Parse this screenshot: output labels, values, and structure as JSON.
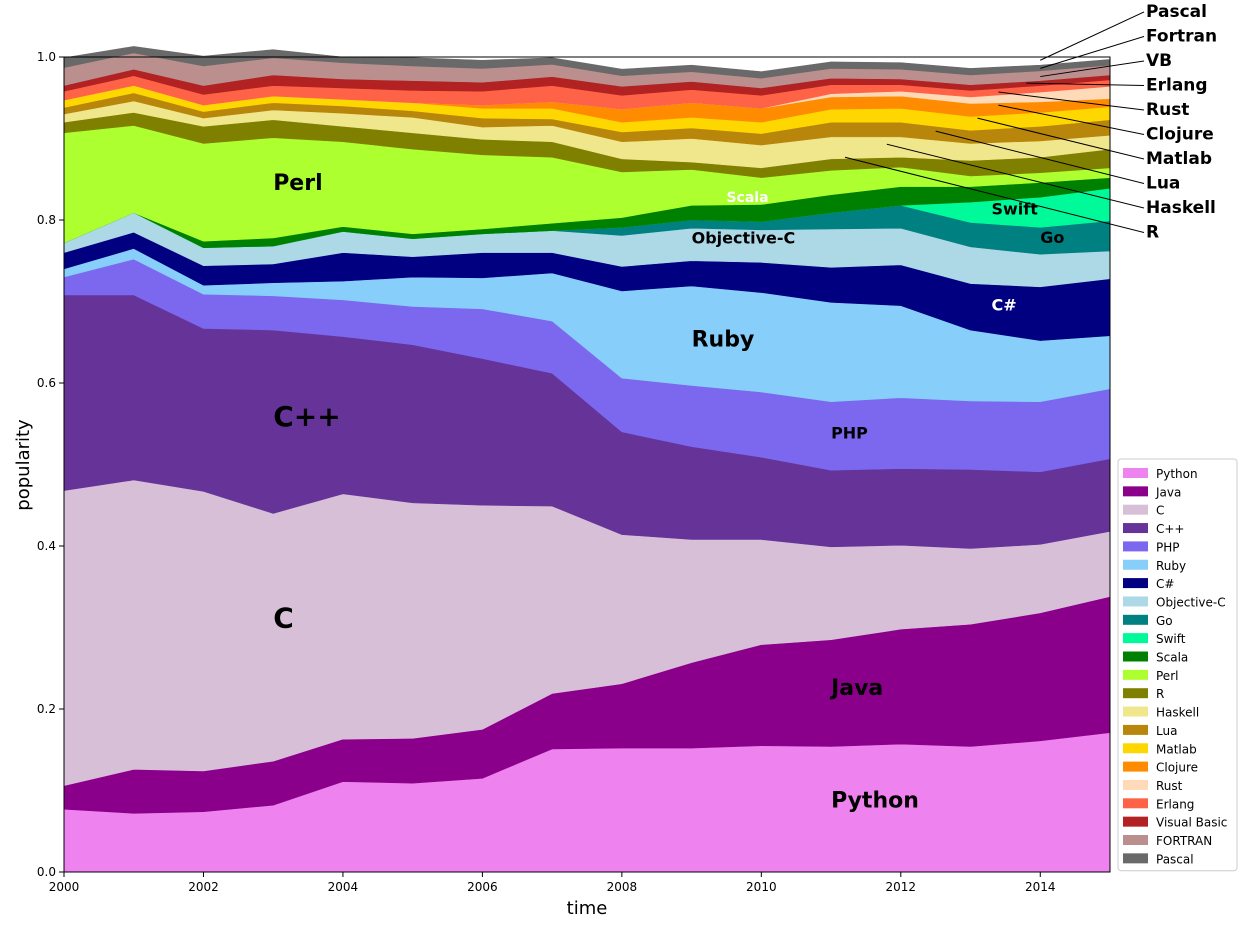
{
  "chart_data": {
    "type": "area",
    "stacked": true,
    "title": "",
    "xlabel": "time",
    "ylabel": "popularity",
    "xlim": [
      2000,
      2015
    ],
    "ylim": [
      0,
      1.0
    ],
    "xticks": [
      "2000",
      "2002",
      "2004",
      "2006",
      "2008",
      "2010",
      "2012",
      "2014"
    ],
    "yticks": [
      "0.0",
      "0.2",
      "0.4",
      "0.6",
      "0.8",
      "1.0"
    ],
    "legend_position": "bottom-right",
    "grid": false,
    "x": [
      2000,
      2001,
      2002,
      2003,
      2004,
      2005,
      2006,
      2007,
      2008,
      2009,
      2010,
      2011,
      2012,
      2013,
      2014,
      2015
    ],
    "series": [
      {
        "name": "Python",
        "color": "#ee82ee",
        "values": [
          0.077,
          0.072,
          0.074,
          0.082,
          0.111,
          0.109,
          0.115,
          0.151,
          0.152,
          0.152,
          0.155,
          0.154,
          0.157,
          0.154,
          0.161,
          0.171
        ]
      },
      {
        "name": "Java",
        "color": "#8b008b",
        "values": [
          0.029,
          0.054,
          0.05,
          0.054,
          0.052,
          0.055,
          0.06,
          0.068,
          0.079,
          0.105,
          0.124,
          0.131,
          0.141,
          0.15,
          0.157,
          0.167
        ]
      },
      {
        "name": "C",
        "color": "#d8bfd8",
        "values": [
          0.362,
          0.355,
          0.343,
          0.304,
          0.301,
          0.289,
          0.275,
          0.23,
          0.183,
          0.151,
          0.129,
          0.114,
          0.103,
          0.093,
          0.084,
          0.08
        ]
      },
      {
        "name": "C++",
        "color": "#663399",
        "values": [
          0.24,
          0.227,
          0.2,
          0.225,
          0.193,
          0.194,
          0.18,
          0.163,
          0.126,
          0.114,
          0.101,
          0.094,
          0.094,
          0.097,
          0.089,
          0.089
        ]
      },
      {
        "name": "PHP",
        "color": "#7b68ee",
        "values": [
          0.022,
          0.044,
          0.042,
          0.042,
          0.045,
          0.047,
          0.061,
          0.064,
          0.066,
          0.075,
          0.08,
          0.084,
          0.087,
          0.084,
          0.086,
          0.086
        ]
      },
      {
        "name": "Ruby",
        "color": "#87cefa",
        "values": [
          0.01,
          0.013,
          0.011,
          0.016,
          0.023,
          0.036,
          0.038,
          0.059,
          0.107,
          0.122,
          0.122,
          0.122,
          0.113,
          0.087,
          0.075,
          0.065
        ]
      },
      {
        "name": "C#",
        "color": "#000080",
        "values": [
          0.02,
          0.02,
          0.024,
          0.023,
          0.035,
          0.025,
          0.031,
          0.025,
          0.03,
          0.031,
          0.037,
          0.043,
          0.05,
          0.057,
          0.066,
          0.07
        ]
      },
      {
        "name": "Objective-C",
        "color": "#add8e6",
        "values": [
          0.012,
          0.024,
          0.022,
          0.022,
          0.026,
          0.022,
          0.023,
          0.027,
          0.038,
          0.04,
          0.04,
          0.047,
          0.045,
          0.045,
          0.04,
          0.034
        ]
      },
      {
        "name": "Go",
        "color": "#008080",
        "values": [
          0.0,
          0.0,
          0.0,
          0.0,
          0.0,
          0.0,
          0.0,
          0.0,
          0.01,
          0.01,
          0.01,
          0.02,
          0.028,
          0.03,
          0.033,
          0.037
        ]
      },
      {
        "name": "Swift",
        "color": "#00fa9a",
        "values": [
          0.0,
          0.0,
          0.0,
          0.0,
          0.0,
          0.0,
          0.0,
          0.0,
          0.0,
          0.0,
          0.0,
          0.0,
          0.0,
          0.025,
          0.037,
          0.04
        ]
      },
      {
        "name": "Scala",
        "color": "#008000",
        "values": [
          0.0,
          0.0,
          0.008,
          0.01,
          0.006,
          0.006,
          0.006,
          0.009,
          0.012,
          0.018,
          0.021,
          0.022,
          0.023,
          0.019,
          0.018,
          0.013
        ]
      },
      {
        "name": "Perl",
        "color": "#adff2f",
        "values": [
          0.135,
          0.107,
          0.12,
          0.123,
          0.104,
          0.104,
          0.091,
          0.081,
          0.056,
          0.044,
          0.033,
          0.03,
          0.024,
          0.013,
          0.012,
          0.012
        ]
      },
      {
        "name": "R",
        "color": "#808000",
        "values": [
          0.013,
          0.016,
          0.021,
          0.022,
          0.019,
          0.02,
          0.019,
          0.019,
          0.016,
          0.009,
          0.012,
          0.014,
          0.012,
          0.019,
          0.019,
          0.023
        ]
      },
      {
        "name": "Haskell",
        "color": "#f0e68c",
        "values": [
          0.01,
          0.014,
          0.01,
          0.012,
          0.016,
          0.019,
          0.015,
          0.02,
          0.021,
          0.029,
          0.028,
          0.027,
          0.025,
          0.021,
          0.02,
          0.017
        ]
      },
      {
        "name": "Lua",
        "color": "#b8860b",
        "values": [
          0.008,
          0.01,
          0.008,
          0.009,
          0.009,
          0.008,
          0.011,
          0.008,
          0.012,
          0.013,
          0.014,
          0.018,
          0.018,
          0.016,
          0.018,
          0.019
        ]
      },
      {
        "name": "Matlab",
        "color": "#ffd700",
        "values": [
          0.009,
          0.009,
          0.008,
          0.008,
          0.008,
          0.01,
          0.012,
          0.013,
          0.012,
          0.013,
          0.014,
          0.016,
          0.017,
          0.017,
          0.017,
          0.016
        ]
      },
      {
        "name": "Clojure",
        "color": "#ff8c00",
        "values": [
          0.0,
          0.0,
          0.0,
          0.0,
          0.0,
          0.0,
          0.004,
          0.008,
          0.016,
          0.018,
          0.017,
          0.015,
          0.015,
          0.016,
          0.013,
          0.01
        ]
      },
      {
        "name": "Rust",
        "color": "#ffdab9",
        "values": [
          0.0,
          0.0,
          0.0,
          0.0,
          0.0,
          0.0,
          0.0,
          0.0,
          0.0,
          0.0,
          0.0,
          0.004,
          0.006,
          0.008,
          0.012,
          0.015
        ]
      },
      {
        "name": "Erlang",
        "color": "#ff6347",
        "values": [
          0.011,
          0.012,
          0.013,
          0.013,
          0.014,
          0.015,
          0.017,
          0.02,
          0.017,
          0.016,
          0.016,
          0.011,
          0.008,
          0.008,
          0.008,
          0.008
        ]
      },
      {
        "name": "Visual Basic",
        "color": "#b22222",
        "values": [
          0.007,
          0.008,
          0.011,
          0.013,
          0.011,
          0.012,
          0.011,
          0.011,
          0.011,
          0.01,
          0.009,
          0.008,
          0.007,
          0.007,
          0.006,
          0.006
        ]
      },
      {
        "name": "FORTRAN",
        "color": "#bc8f8f",
        "values": [
          0.022,
          0.02,
          0.024,
          0.021,
          0.02,
          0.018,
          0.017,
          0.015,
          0.013,
          0.012,
          0.012,
          0.012,
          0.012,
          0.012,
          0.012,
          0.012
        ]
      },
      {
        "name": "Pascal",
        "color": "#696969",
        "values": [
          0.012,
          0.008,
          0.012,
          0.01,
          0.007,
          0.01,
          0.01,
          0.008,
          0.008,
          0.008,
          0.008,
          0.008,
          0.008,
          0.008,
          0.007,
          0.007
        ]
      }
    ],
    "area_labels": [
      {
        "text": "Perl",
        "x": 2003.0,
        "y": 0.837,
        "size": "medium",
        "color": "#000000"
      },
      {
        "text": "C++",
        "x": 2003.0,
        "y": 0.547,
        "size": "large",
        "color": "#000000"
      },
      {
        "text": "C",
        "x": 2003.0,
        "y": 0.3,
        "size": "large",
        "color": "#000000"
      },
      {
        "text": "Java",
        "x": 2011.0,
        "y": 0.217,
        "size": "medium",
        "color": "#000000"
      },
      {
        "text": "Python",
        "x": 2011.0,
        "y": 0.079,
        "size": "medium",
        "color": "#000000"
      },
      {
        "text": "Ruby",
        "x": 2009.0,
        "y": 0.645,
        "size": "medium",
        "color": "#000000"
      },
      {
        "text": "PHP",
        "x": 2011.0,
        "y": 0.532,
        "size": "small",
        "color": "#000000"
      },
      {
        "text": "Objective-C",
        "x": 2009.0,
        "y": 0.771,
        "size": "small",
        "color": "#000000"
      },
      {
        "text": "Scala",
        "x": 2009.5,
        "y": 0.822,
        "size": "xsmall",
        "color": "#ffffff"
      },
      {
        "text": "C#",
        "x": 2013.3,
        "y": 0.689,
        "size": "small",
        "color": "#ffffff"
      },
      {
        "text": "Swift",
        "x": 2013.3,
        "y": 0.807,
        "size": "small",
        "color": "#000000"
      },
      {
        "text": "Go",
        "x": 2014.0,
        "y": 0.772,
        "size": "small",
        "color": "#000000"
      }
    ],
    "callouts": [
      {
        "text": "Pascal",
        "x": 2014.0,
        "y": 0.996
      },
      {
        "text": "Fortran",
        "x": 2014.0,
        "y": 0.986
      },
      {
        "text": "VB",
        "x": 2014.0,
        "y": 0.976
      },
      {
        "text": "Erlang",
        "x": 2013.8,
        "y": 0.968
      },
      {
        "text": "Rust",
        "x": 2013.4,
        "y": 0.957
      },
      {
        "text": "Clojure",
        "x": 2013.4,
        "y": 0.941
      },
      {
        "text": "Matlab",
        "x": 2013.1,
        "y": 0.925
      },
      {
        "text": "Lua",
        "x": 2012.5,
        "y": 0.909
      },
      {
        "text": "Haskell",
        "x": 2011.8,
        "y": 0.893
      },
      {
        "text": "R",
        "x": 2011.2,
        "y": 0.877
      }
    ]
  }
}
